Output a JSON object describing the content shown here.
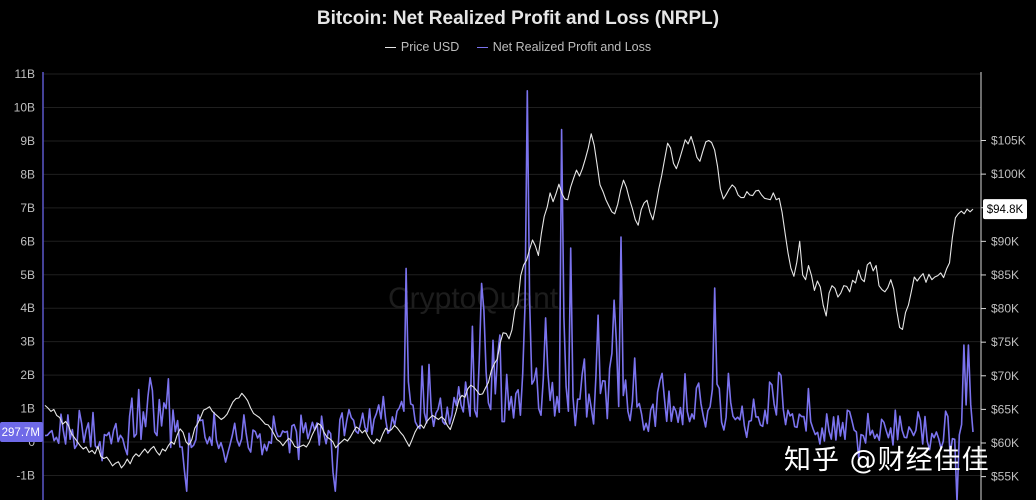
{
  "chart_data": {
    "type": "line",
    "title": "Bitcoin: Net Realized Profit and Loss (NRPL)",
    "legend_position": "top-center",
    "grid": "horizontal",
    "left_axis": {
      "ticks": [
        "11B",
        "10B",
        "9B",
        "8B",
        "7B",
        "6B",
        "5B",
        "4B",
        "3B",
        "2B",
        "1B",
        "0",
        "-1B"
      ],
      "ylim": [
        -1.8,
        11
      ]
    },
    "right_axis": {
      "ticks": [
        "$105K",
        "$100K",
        "$95K",
        "$90K",
        "$85K",
        "$80K",
        "$75K",
        "$70K",
        "$65K",
        "$60K",
        "$55K"
      ],
      "ylim": [
        54000,
        110000
      ]
    },
    "current_price_label": "$94.8K",
    "current_nrpl_label": "297.7M",
    "series": [
      {
        "name": "Price USD",
        "axis": "right",
        "color": "#e6e6e6",
        "values": [
          65600,
          65200,
          64700,
          65000,
          64100,
          63800,
          62800,
          63200,
          62600,
          61400,
          60800,
          60200,
          59600,
          59100,
          59400,
          58600,
          58900,
          58400,
          59500,
          58000,
          57700,
          57900,
          57300,
          56600,
          57000,
          57200,
          56300,
          56800,
          57600,
          56900,
          57900,
          58400,
          58000,
          58600,
          59100,
          58500,
          59100,
          59500,
          58700,
          58200,
          59100,
          58800,
          59600,
          60200,
          59800,
          61200,
          62100,
          61600,
          60200,
          59700,
          60500,
          62200,
          62900,
          63800,
          64900,
          65100,
          65400,
          64700,
          64300,
          63900,
          63500,
          63800,
          64300,
          65200,
          66100,
          66600,
          66700,
          67400,
          66900,
          66300,
          65200,
          64400,
          64100,
          63800,
          63300,
          62800,
          62700,
          62100,
          61300,
          60500,
          60200,
          59600,
          60200,
          60700,
          60300,
          59500,
          59300,
          59500,
          59700,
          59400,
          60100,
          61200,
          62100,
          62900,
          62600,
          61600,
          60900,
          60600,
          60200,
          59300,
          59800,
          60200,
          60600,
          60300,
          60900,
          61700,
          62400,
          62100,
          61500,
          61900,
          61000,
          60300,
          59900,
          60600,
          60200,
          61300,
          62200,
          61800,
          62000,
          62600,
          62200,
          61600,
          61100,
          60300,
          59500,
          60500,
          61600,
          62400,
          62700,
          62200,
          63200,
          63700,
          64100,
          63800,
          63500,
          63900,
          63500,
          62600,
          62000,
          63300,
          64700,
          66500,
          67100,
          66800,
          68100,
          68600,
          68300,
          67800,
          67200,
          67300,
          68200,
          69000,
          70800,
          71800,
          72500,
          74900,
          76400,
          76300,
          75500,
          76800,
          79800,
          80700,
          84900,
          86500,
          87200,
          88800,
          90200,
          89300,
          87900,
          91100,
          93700,
          95100,
          97200,
          95900,
          97100,
          98500,
          97100,
          96300,
          96200,
          98100,
          99400,
          100600,
          99700,
          100800,
          102300,
          103900,
          106000,
          104300,
          101400,
          98400,
          97400,
          96200,
          95300,
          94400,
          94100,
          95500,
          97600,
          99100,
          98000,
          96300,
          94900,
          93200,
          92400,
          94700,
          95700,
          96100,
          94300,
          93200,
          95300,
          97800,
          99800,
          102200,
          104600,
          103900,
          101600,
          100800,
          102100,
          103600,
          105100,
          104500,
          105600,
          104200,
          102500,
          101900,
          103400,
          104800,
          105000,
          104700,
          103600,
          101200,
          97800,
          96300,
          97000,
          97800,
          98400,
          98000,
          96900,
          96500,
          96500,
          97400,
          96900,
          96800,
          97500,
          97600,
          96900,
          96400,
          96300,
          96200,
          97200,
          96200,
          96400,
          94300,
          91200,
          88300,
          86000,
          84800,
          86900,
          90000,
          85000,
          84300,
          86400,
          84900,
          82700,
          84100,
          83200,
          80500,
          78900,
          82300,
          83400,
          83000,
          81700,
          82300,
          83400,
          83300,
          82500,
          84200,
          83800,
          85700,
          84400,
          84000,
          86500,
          86900,
          85600,
          86400,
          83400,
          82800,
          82500,
          83100,
          84300,
          82900,
          79800,
          77200,
          76900,
          79400,
          80500,
          82500,
          84700,
          84100,
          84700,
          85200,
          83900,
          85100,
          84300,
          84700,
          84900,
          85300,
          84600,
          85900,
          86800,
          90600,
          93500,
          94100,
          94500,
          94100,
          94800,
          94400,
          94800
        ]
      },
      {
        "name": "Net Realized Profit and Loss",
        "axis": "left",
        "color": "#7b73ee",
        "values": [
          0.19,
          0.2,
          0.28,
          0.34,
          0.04,
          0.14,
          -0.04,
          0.83,
          0.34,
          -0.06,
          0.81,
          0.08,
          0.37,
          -0.19,
          -0.08,
          0.94,
          0.56,
          -0.01,
          0.35,
          0.57,
          -0.14,
          0.88,
          -0.12,
          -0.19,
          0.01,
          -0.56,
          0.22,
          0.19,
          0.29,
          -0.05,
          0.35,
          0.55,
          0.01,
          0.2,
          0.1,
          -0.18,
          -0.38,
          0.77,
          1.31,
          0.15,
          0.24,
          1.57,
          0.08,
          0.9,
          0.46,
          1.34,
          1.92,
          1.54,
          0.3,
          0.19,
          1.27,
          0.48,
          1.17,
          1.0,
          1.89,
          -0.16,
          0.96,
          0.31,
          0.64,
          -0.15,
          -0.15,
          -0.85,
          -1.47,
          0.26,
          -0.16,
          -0.1,
          0.07,
          0.81,
          0.64,
          0.66,
          0.14,
          -0.05,
          0.15,
          -0.1,
          0.88,
          0.06,
          -0.19,
          -0.02,
          -0.27,
          -0.6,
          -0.32,
          -0.07,
          0.21,
          0.56,
          0.07,
          -0.12,
          0.09,
          0.81,
          0.27,
          -0.17,
          -0.3,
          0.36,
          0.31,
          0.12,
          0.24,
          -0.38,
          -0.07,
          -0.26,
          0.01,
          -0.04,
          0.77,
          0.33,
          0.16,
          0.17,
          0.33,
          0.29,
          0.32,
          -0.32,
          0.48,
          0.52,
          0.31,
          -0.52,
          0.8,
          0.28,
          0.57,
          0.1,
          0.33,
          0.59,
          0.36,
          0.57,
          -0.09,
          0.77,
          0.24,
          -0.05,
          0.34,
          0.25,
          -0.9,
          -1.47,
          -0.38,
          0.67,
          0.87,
          0.19,
          0.63,
          0.97,
          0.73,
          0.65,
          0.32,
          0.26,
          0.53,
          0.86,
          0.44,
          0.31,
          0.99,
          0.23,
          0.68,
          0.85,
          1.11,
          0.69,
          1.36,
          0.69,
          0.26,
          0.35,
          0.75,
          0.5,
          0.92,
          1.02,
          1.21,
          0.92,
          5.19,
          1.8,
          1.14,
          1.1,
          0.6,
          0.47,
          0.4,
          2.27,
          0.87,
          0.57,
          2.32,
          0.93,
          0.47,
          0.86,
          0.98,
          1.31,
          0.61,
          0.53,
          1.04,
          0.54,
          0.81,
          1.33,
          1.09,
          1.65,
          1.11,
          0.9,
          1.79,
          1.26,
          0.77,
          3.46,
          0.95,
          0.75,
          2.47,
          4.74,
          3.93,
          2.1,
          1.17,
          0.97,
          3.04,
          1.44,
          2.59,
          3.2,
          0.61,
          0.61,
          2.02,
          0.96,
          1.36,
          0.72,
          1.45,
          1.56,
          0.8,
          2.04,
          4.07,
          10.5,
          4.24,
          1.73,
          1.85,
          2.21,
          1.0,
          0.8,
          1.89,
          3.71,
          2.08,
          1.24,
          1.78,
          0.78,
          1.36,
          0.89,
          9.34,
          3.72,
          1.66,
          0.92,
          5.8,
          1.34,
          0.49,
          1.28,
          1.28,
          2.01,
          2.48,
          0.75,
          1.43,
          1.01,
          0.54,
          1.95,
          3.79,
          1.45,
          1.83,
          1.82,
          0.7,
          2.2,
          2.65,
          4.24,
          2.99,
          1.06,
          6.13,
          1.39,
          1.85,
          0.92,
          0.64,
          1.21,
          2.51,
          1.05,
          1.15,
          0.83,
          0.36,
          0.56,
          0.32,
          0.96,
          1.13,
          0.47,
          1.49,
          1.84,
          2.05,
          1.31,
          0.62,
          1.52,
          0.62,
          1.06,
          0.92,
          0.59,
          1.03,
          0.52,
          2.04,
          0.91,
          0.61,
          0.84,
          0.69,
          1.61,
          1.76,
          1.14,
          0.77,
          0.45,
          0.94,
          1.05,
          1.58,
          4.6,
          1.73,
          1.6,
          0.59,
          0.36,
          0.74,
          2.05,
          1.18,
          0.77,
          0.67,
          0.74,
          0.66,
          1.07,
          0.48,
          0.14,
          0.62,
          0.64,
          1.28,
          0.75,
          0.75,
          0.51,
          0.47,
          0.95,
          0.55,
          1.79,
          1.71,
          1.14,
          0.81,
          2.08,
          1.99,
          0.98,
          0.52,
          0.95,
          0.78,
          0.84,
          0.46,
          0.44,
          0.83,
          0.76,
          0.76,
          0.33,
          1.6,
          0.61,
          0.4,
          0.22,
          0.29,
          -0.06,
          0.42,
          0.03,
          0.84,
          0.33,
          0.09,
          0.75,
          0.06,
          0.78,
          0.18,
          0.58,
          0.08,
          0.95,
          0.91,
          0.64,
          0.36,
          0.3,
          -0.47,
          0.22,
          0.19,
          -0.03,
          0.85,
          0.21,
          0.35,
          0.11,
          0.23,
          0.05,
          0.68,
          0.59,
          0.35,
          0.13,
          0.42,
          -0.09,
          0.95,
          0.07,
          0.77,
          0.35,
          0.14,
          0.13,
          0.45,
          0.34,
          0.19,
          0.35,
          0.9,
          0.65,
          -0.06,
          0.76,
          0.01,
          -0.23,
          0.25,
          0.13,
          0.3,
          0.1,
          -0.19,
          0.02,
          0.92,
          0.76,
          -0.37,
          0.1,
          0.08,
          -1.8,
          0.21,
          0.52,
          2.9,
          1.11,
          2.9,
          1.13,
          0.3
        ]
      }
    ]
  },
  "watermark": {
    "logo_text": "CryptoQuant",
    "text": "知乎 @财经佳佳"
  },
  "colors": {
    "background": "#000000",
    "grid": "#1f1f1f",
    "price": "#e6e6e6",
    "nrpl": "#7b73ee",
    "nrpl_badge": "#6f6ae8"
  }
}
